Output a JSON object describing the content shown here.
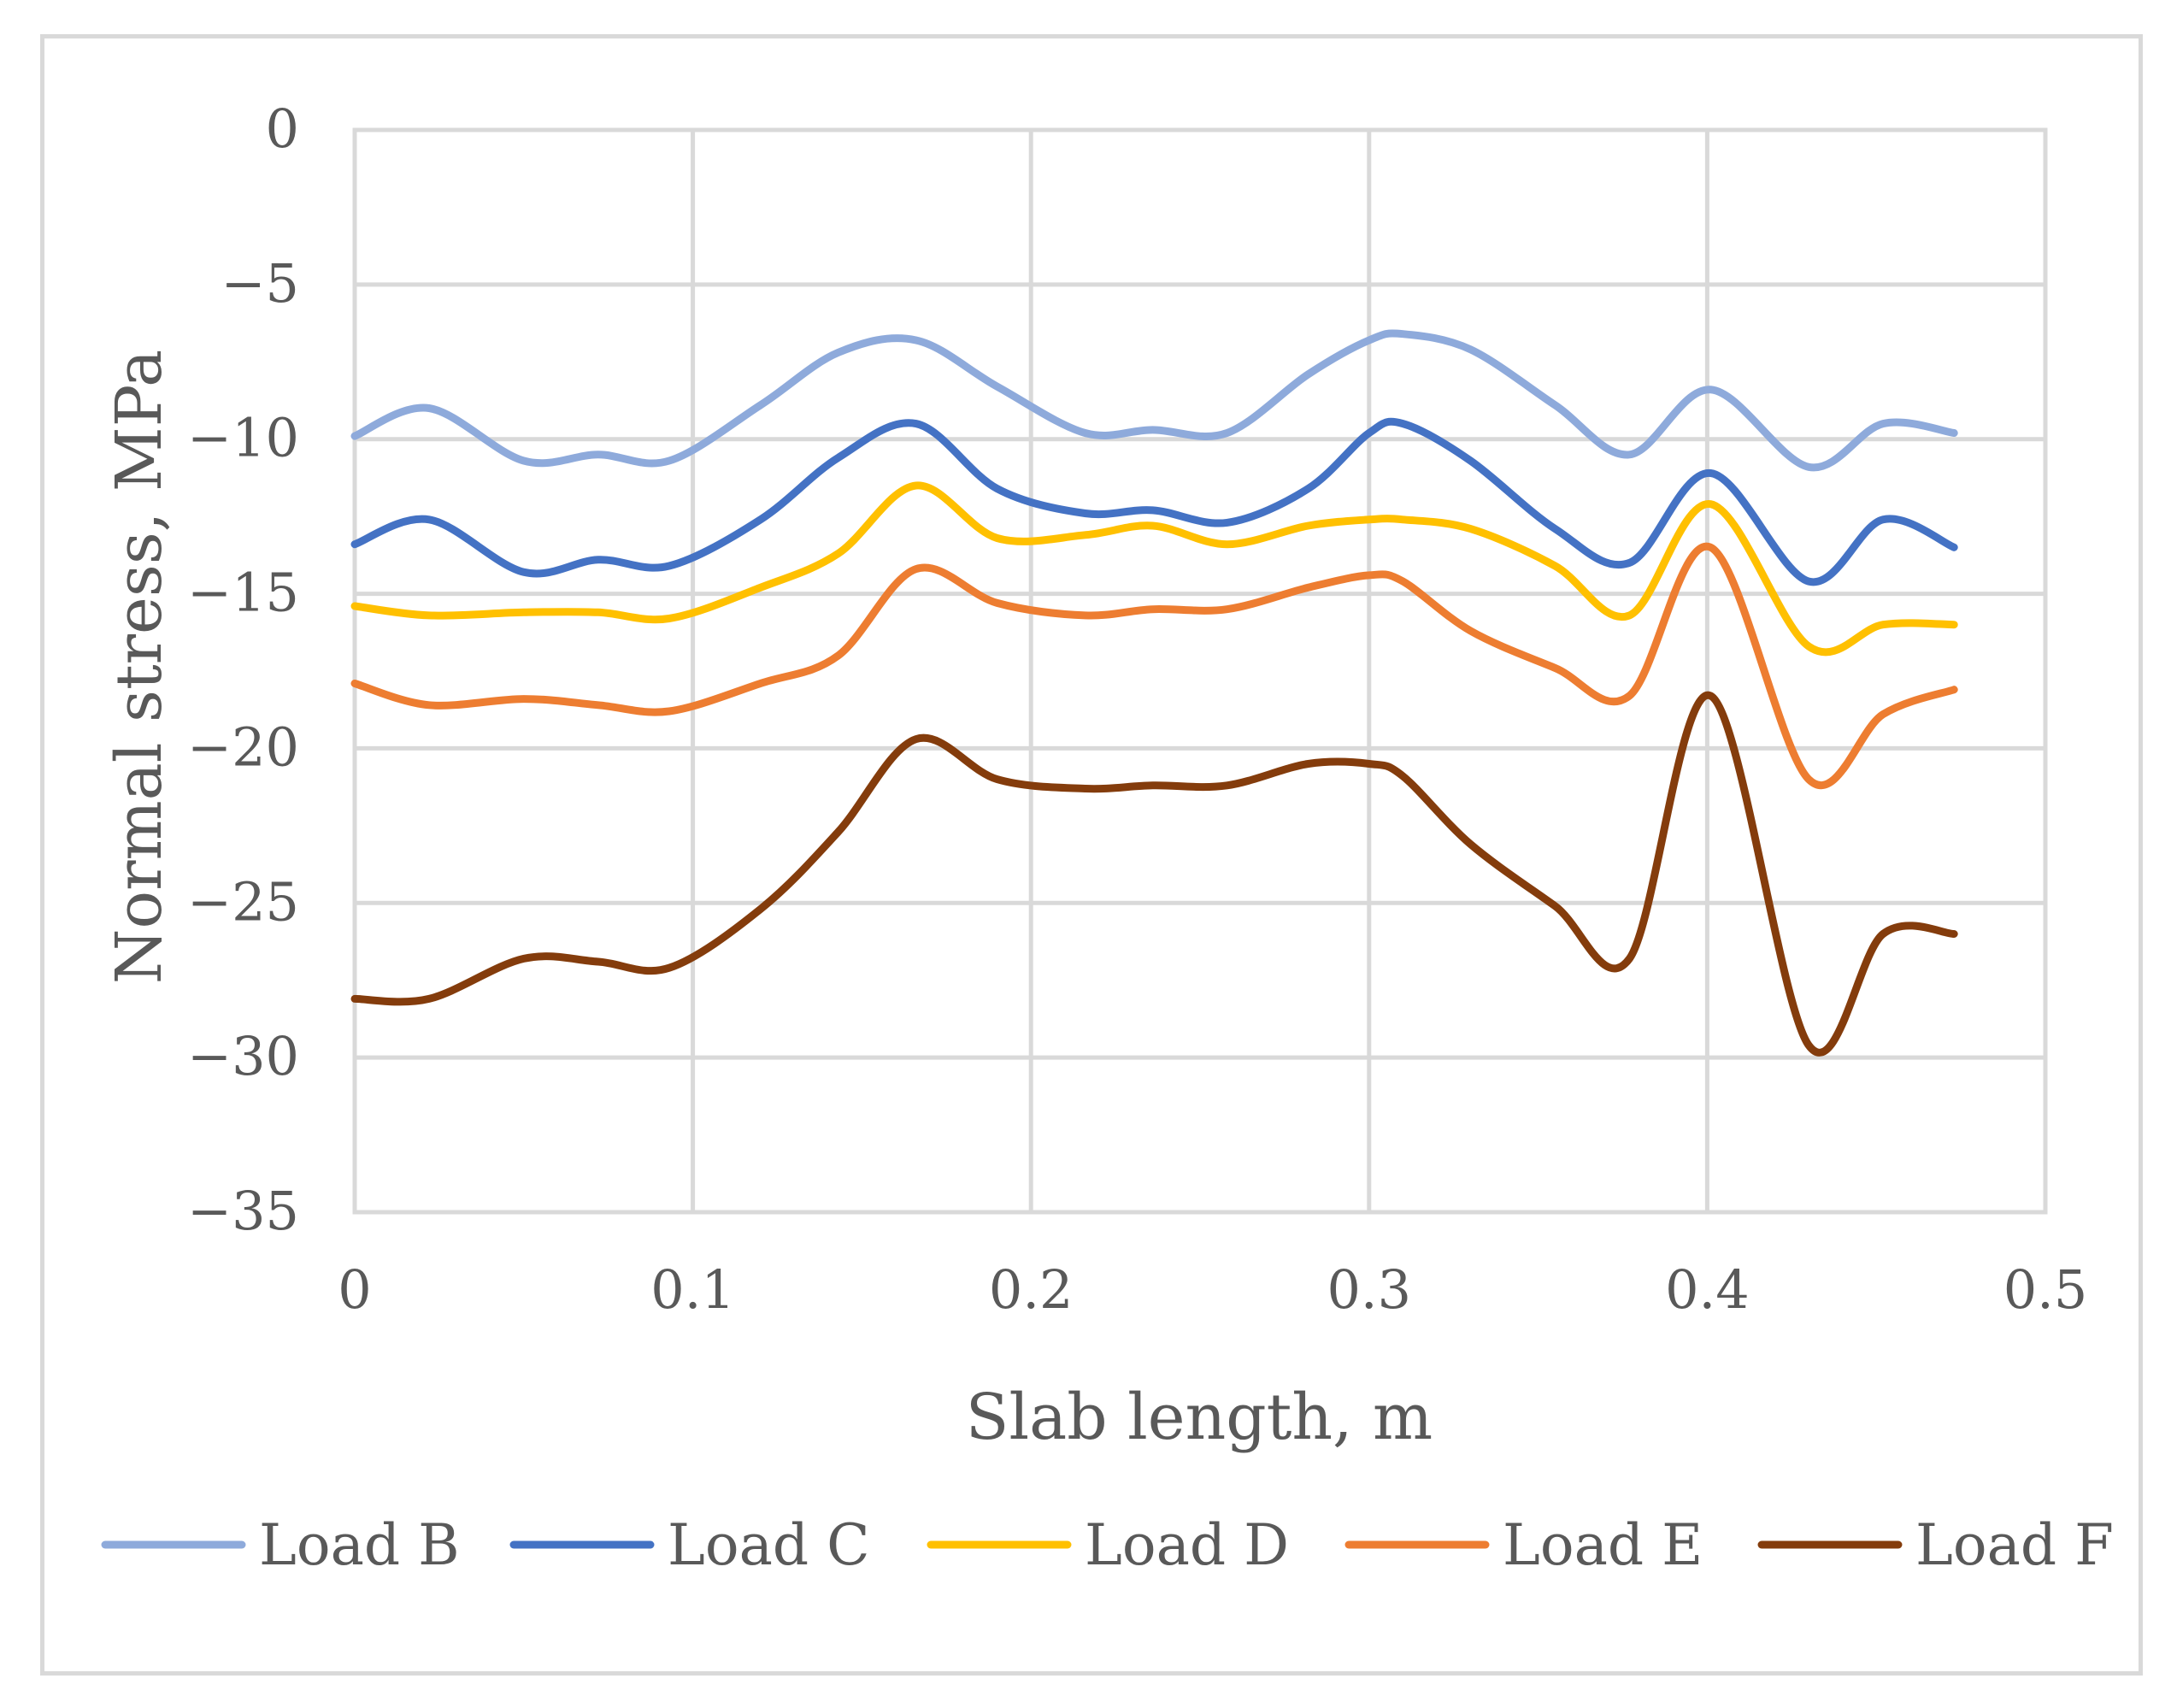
{
  "chart_data": {
    "type": "line",
    "title": "",
    "xlabel": "Slab length, m",
    "ylabel": "Normal stress, MPa",
    "xlim": [
      0,
      0.5
    ],
    "ylim": [
      -35,
      0
    ],
    "xticks": [
      "0",
      "0.1",
      "0.2",
      "0.3",
      "0.4",
      "0.5"
    ],
    "yticks": [
      "0",
      "−5",
      "−10",
      "−15",
      "−20",
      "−25",
      "−30",
      "−35"
    ],
    "xtick_values": [
      0,
      0.1,
      0.2,
      0.3,
      0.4,
      0.5
    ],
    "ytick_values": [
      0,
      -5,
      -10,
      -15,
      -20,
      -25,
      -30,
      -35
    ],
    "grid": true,
    "legend_position": "bottom",
    "x": [
      0,
      0.022,
      0.05,
      0.072,
      0.093,
      0.12,
      0.143,
      0.166,
      0.19,
      0.216,
      0.236,
      0.258,
      0.282,
      0.3,
      0.31,
      0.33,
      0.355,
      0.377,
      0.401,
      0.43,
      0.452,
      0.473
    ],
    "series": [
      {
        "name": "Load B",
        "color": "#8eaadb",
        "values": [
          -9.9,
          -9.0,
          -10.7,
          -10.5,
          -10.7,
          -8.9,
          -7.2,
          -6.8,
          -8.3,
          -9.8,
          -9.7,
          -9.8,
          -7.9,
          -6.8,
          -6.6,
          -7.1,
          -8.9,
          -10.5,
          -8.4,
          -10.9,
          -9.5,
          -9.8
        ]
      },
      {
        "name": "Load C",
        "color": "#4472c4",
        "values": [
          -13.4,
          -12.6,
          -14.3,
          -13.9,
          -14.1,
          -12.6,
          -10.6,
          -9.5,
          -11.6,
          -12.4,
          -12.3,
          -12.7,
          -11.6,
          -9.8,
          -9.5,
          -10.7,
          -12.9,
          -14.0,
          -11.1,
          -14.6,
          -12.6,
          -13.5
        ]
      },
      {
        "name": "Load D",
        "color": "#ffc000",
        "values": [
          -15.4,
          -15.7,
          -15.6,
          -15.6,
          -15.8,
          -14.8,
          -13.7,
          -11.5,
          -13.2,
          -13.1,
          -12.8,
          -13.4,
          -12.8,
          -12.6,
          -12.6,
          -12.9,
          -14.1,
          -15.7,
          -12.1,
          -16.7,
          -16.0,
          -16.0
        ]
      },
      {
        "name": "Load E",
        "color": "#ed7d31",
        "values": [
          -17.9,
          -18.6,
          -18.4,
          -18.6,
          -18.8,
          -17.9,
          -17.0,
          -14.2,
          -15.3,
          -15.7,
          -15.5,
          -15.5,
          -14.8,
          -14.4,
          -14.6,
          -16.2,
          -17.4,
          -18.3,
          -13.5,
          -21.0,
          -18.9,
          -18.1
        ]
      },
      {
        "name": "Load F",
        "color": "#843c0c",
        "values": [
          -28.1,
          -28.1,
          -26.8,
          -26.9,
          -27.1,
          -25.2,
          -22.7,
          -19.7,
          -21.0,
          -21.3,
          -21.2,
          -21.2,
          -20.5,
          -20.5,
          -20.9,
          -23.1,
          -25.1,
          -26.8,
          -18.3,
          -29.6,
          -26.0,
          -26.0
        ]
      }
    ]
  }
}
